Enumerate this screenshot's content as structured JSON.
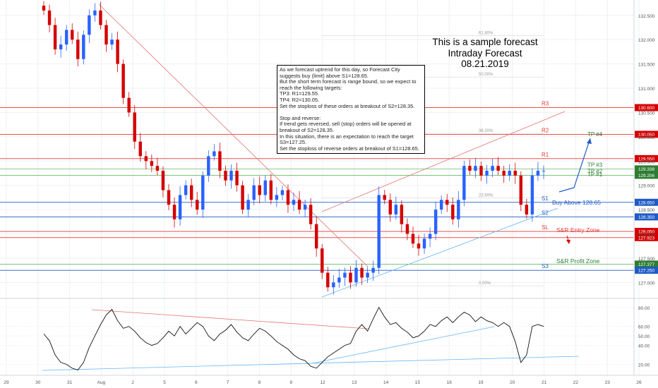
{
  "title_block": {
    "line1": "This is a sample forecast",
    "line2": "Intraday Forecast",
    "line3": "08.21.2019"
  },
  "note": {
    "text": "As we forecast uptrend for this day, so Forecast City suggests buy (limit) above S1=128.65.\nBut the short term forecast is range bound, so we expect to reach the following targets:\nTP3: R1=129.55.\nTP4: R2=130.05.\nSet the stoploss of these orders at breakout of S2=128.35.\n\nStop and reverse:\nIf trend gets reversed, sell (stop) orders will be opened at breakout of S2=128.35.\nIn this situation, there is an expectation to reach the target S3=127.25.\nSet the stoploss of reverse orders at breakout of S1=128.65."
  },
  "colors": {
    "up": "#2962ff",
    "down": "#d50000",
    "resistance": "#e53935",
    "support": "#1e5bc6",
    "green_line": "#4caf50",
    "grid": "#eef0f3"
  },
  "chart_data": [
    {
      "type": "candlestick",
      "instrument_note": "price panel",
      "ylim": [
        126.7,
        132.7
      ],
      "y_ticks": [
        "127.000",
        "127.500",
        "128.000",
        "128.500",
        "129.000",
        "129.500",
        "130.000",
        "130.500",
        "131.000",
        "131.500",
        "132.000",
        "132.500"
      ],
      "x_ticks": [
        "29",
        "30",
        "31",
        "Aug",
        "2",
        "5",
        "6",
        "7",
        "8",
        "9",
        "12",
        "13",
        "14",
        "15",
        "16",
        "19",
        "20",
        "21",
        "22",
        "23",
        "26"
      ],
      "fib_levels": [
        {
          "label": "61.80%",
          "value": 132.08
        },
        {
          "label": "50.00%",
          "value": 131.23
        },
        {
          "label": "38.20%",
          "value": 130.07
        },
        {
          "label": "23.60%",
          "value": 128.74
        },
        {
          "label": "0.00%",
          "value": 126.93
        }
      ],
      "levels": [
        {
          "label": "R3",
          "value": 130.6,
          "price_label": "130.600",
          "kind": "resistance"
        },
        {
          "label": "R2",
          "value": 130.05,
          "price_label": "130.050",
          "kind": "resistance"
        },
        {
          "label": "R1",
          "value": 129.55,
          "price_label": "129.550",
          "kind": "resistance"
        },
        {
          "label": "TP #3",
          "value": 129.338,
          "price_label": "129.338",
          "kind": "green"
        },
        {
          "label": "TP #2",
          "value": 129.206,
          "price_label": "129.206",
          "kind": "green"
        },
        {
          "label": "S1",
          "value": 128.65,
          "price_label": "128.650",
          "kind": "support"
        },
        {
          "label": "S2",
          "value": 128.35,
          "price_label": "128.350",
          "kind": "support"
        },
        {
          "label": "SL",
          "value": 128.05,
          "price_label": "128.050",
          "kind": "resistance"
        },
        {
          "label": "",
          "value": 127.923,
          "price_label": "127.923",
          "kind": "resistance"
        },
        {
          "label": "",
          "value": 127.377,
          "price_label": "127.377",
          "kind": "green"
        },
        {
          "label": "S3",
          "value": 127.25,
          "price_label": "127.250",
          "kind": "support"
        }
      ],
      "annotations": [
        {
          "text": "TP #4",
          "kind": "green"
        },
        {
          "text": "TP #1",
          "kind": "green"
        },
        {
          "text": "Buy Above 128.65",
          "kind": "support"
        },
        {
          "text": "S&R Entry Zone",
          "kind": "resistance"
        },
        {
          "text": "S&R Profit Zone",
          "kind": "green"
        }
      ],
      "series": [
        {
          "values": [
            132.6,
            132.3,
            131.8,
            131.9,
            132.2,
            132.0,
            131.6,
            132.1,
            132.5,
            132.6,
            132.3,
            131.9,
            132.0,
            131.5,
            130.8,
            130.5,
            129.9,
            129.6,
            129.5,
            129.4,
            129.3,
            128.9,
            128.6,
            128.3,
            128.8,
            129.0,
            128.7,
            128.5,
            129.2,
            129.6,
            129.7,
            129.3,
            129.1,
            129.3,
            129.0,
            128.5,
            128.7,
            129.0,
            128.8,
            129.1,
            128.7,
            128.8,
            128.9,
            128.6,
            128.7,
            128.5,
            128.6,
            128.2,
            127.7,
            127.2,
            126.9,
            127.0,
            127.1,
            127.2,
            127.0,
            127.3,
            127.1,
            127.2,
            127.3,
            128.8,
            128.7,
            128.4,
            128.6,
            128.2,
            128.0,
            127.8,
            127.7,
            127.9,
            128.0,
            128.5,
            128.7,
            128.6,
            128.3,
            128.7,
            129.4,
            129.3,
            129.4,
            129.2,
            129.3,
            129.4,
            129.3,
            129.2,
            129.3,
            129.2,
            128.6,
            128.4,
            129.2,
            129.3,
            129.3
          ]
        }
      ]
    },
    {
      "type": "line",
      "instrument_note": "oscillator panel",
      "ylim": [
        10,
        88
      ],
      "y_ticks": [
        "20.00",
        "40.00",
        "50.00",
        "60.00",
        "80.00"
      ],
      "series": [
        {
          "values": [
            52,
            45,
            30,
            22,
            20,
            16,
            14,
            22,
            38,
            50,
            62,
            72,
            78,
            66,
            58,
            60,
            55,
            48,
            43,
            40,
            42,
            48,
            55,
            50,
            60,
            52,
            58,
            64,
            60,
            50,
            45,
            52,
            56,
            62,
            54,
            48,
            45,
            52,
            58,
            55,
            50,
            44,
            40,
            36,
            30,
            26,
            24,
            18,
            16,
            22,
            28,
            32,
            36,
            40,
            42,
            55,
            62,
            55,
            68,
            80,
            70,
            62,
            64,
            58,
            54,
            48,
            50,
            55,
            62,
            60,
            66,
            70,
            64,
            70,
            75,
            72,
            65,
            70,
            66,
            64,
            60,
            64,
            60,
            44,
            22,
            30,
            60,
            62,
            60
          ]
        }
      ]
    }
  ]
}
